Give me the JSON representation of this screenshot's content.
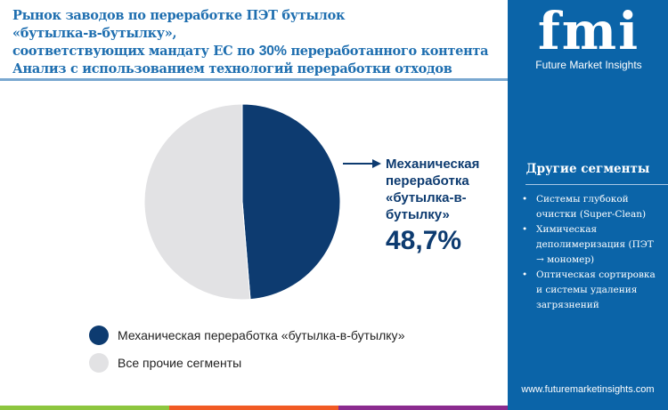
{
  "title": {
    "line1": "Рынок заводов по переработке ПЭТ бутылок «бутылка‑в‑бутылку»,",
    "line2a": "соответствующих мандату ЕС по ",
    "line2b": "30%",
    "line2c": " переработанного контента",
    "line3": "Анализ с использованием технологий переработки отходов"
  },
  "logo": {
    "mark": "fmi",
    "name": "Future Market Insights"
  },
  "sidebar": {
    "heading": "Другие сегменты",
    "items": [
      "Системы глубокой очистки (Super-Clean)",
      "Химическая деполимеризация (ПЭТ → мономер)",
      "Оптическая сортировка и системы удаления загрязнений"
    ],
    "url": "www.futuremarketinsights.com"
  },
  "chart_data": {
    "type": "pie",
    "slices": [
      {
        "label": "Механическая переработка «бутылка-в-бутылку»",
        "value": 48.7,
        "color": "#0d3b70"
      },
      {
        "label": "Все прочие сегменты",
        "value": 51.3,
        "color": "#e2e2e4"
      }
    ],
    "callout": {
      "label": "Механическая переработка «бутылка-в-бутылку»",
      "value_text": "48,7%"
    }
  },
  "colors": {
    "sidebar": "#0b64a8",
    "bars": [
      "#8dc63f",
      "#f15a24",
      "#8b2b8f"
    ]
  }
}
